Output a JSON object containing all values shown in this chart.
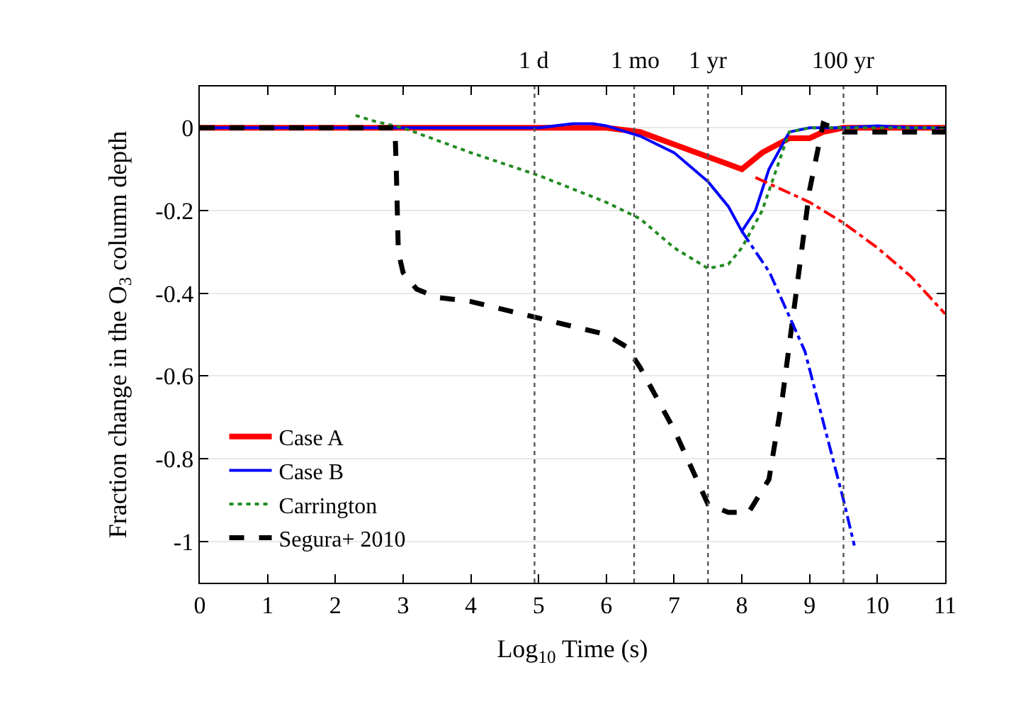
{
  "chart_data": {
    "type": "line",
    "xlabel": "Log$_{10}$ Time (s)",
    "ylabel": "Fraction change in the O$_{3}$ column depth",
    "xlim": [
      0,
      11
    ],
    "xticks": [
      0,
      1,
      2,
      3,
      4,
      5,
      6,
      7,
      8,
      9,
      10,
      11
    ],
    "ylim": [
      -1.1,
      0.1
    ],
    "yticks": [
      0,
      -0.2,
      -0.4,
      -0.6,
      -0.8,
      -1
    ],
    "grid": "y",
    "legend": "bottom left",
    "ref_lines": [
      {
        "axis": "x",
        "value": 4.94,
        "label": "1 d",
        "line_style": "dotted"
      },
      {
        "axis": "x",
        "value": 6.41,
        "label": "1 mo",
        "line_style": "dotted"
      },
      {
        "axis": "x",
        "value": 7.5,
        "label": "1 yr",
        "line_style": "dotted"
      },
      {
        "axis": "x",
        "value": 9.5,
        "label": "100 yr",
        "line_style": "dotted"
      }
    ],
    "series": [
      {
        "name": "Case A",
        "color": "#ff0000",
        "line_style": "solid",
        "x": [
          0,
          5,
          6,
          6.5,
          7,
          7.5,
          8,
          8.3,
          8.7,
          9,
          9.2,
          9.5,
          10,
          11
        ],
        "values": [
          0,
          0,
          0,
          -0.01,
          -0.04,
          -0.07,
          -0.1,
          -0.06,
          -0.025,
          -0.025,
          -0.01,
          0,
          0,
          0
        ]
      },
      {
        "name": "Case B",
        "color": "#0000ff",
        "line_style": "solid",
        "x": [
          0,
          5,
          5.5,
          5.8,
          6,
          6.5,
          7,
          7.5,
          7.8,
          8,
          8.2,
          8.4,
          8.7,
          9,
          9.5,
          10,
          10.5,
          11
        ],
        "values": [
          0,
          0,
          0.01,
          0.01,
          0.005,
          -0.02,
          -0.06,
          -0.13,
          -0.19,
          -0.25,
          -0.2,
          -0.1,
          -0.01,
          0,
          0,
          0.005,
          0,
          0
        ]
      },
      {
        "name": "Carrington",
        "color": "#228b22",
        "line_style": "dotted",
        "x": [
          2.3,
          2.6,
          3,
          4,
          5,
          6,
          6.5,
          7,
          7.5,
          7.8,
          8,
          8.3,
          8.7,
          9,
          10,
          11
        ],
        "values": [
          0.03,
          0.015,
          0,
          -0.06,
          -0.115,
          -0.18,
          -0.22,
          -0.29,
          -0.34,
          -0.33,
          -0.29,
          -0.2,
          -0.01,
          0,
          0,
          0
        ]
      },
      {
        "name": "Segura+ 2010",
        "color": "#000000",
        "line_style": "dashed",
        "x": [
          0,
          2.88,
          2.9,
          2.93,
          3,
          3.2,
          3.5,
          4,
          5,
          6,
          6.3,
          6.5,
          7,
          7.5,
          7.8,
          8.1,
          8.4,
          8.6,
          8.8,
          9,
          9.2,
          9.5,
          10,
          11
        ],
        "values": [
          0,
          0,
          -0.1,
          -0.3,
          -0.35,
          -0.39,
          -0.41,
          -0.42,
          -0.46,
          -0.5,
          -0.53,
          -0.58,
          -0.73,
          -0.91,
          -0.93,
          -0.93,
          -0.85,
          -0.65,
          -0.4,
          -0.15,
          0.01,
          -0.01,
          -0.01,
          -0.01
        ]
      },
      {
        "color": "#ff0000",
        "line_style": "dashdot",
        "x": [
          8.2,
          9,
          9.5,
          10,
          10.5,
          11
        ],
        "values": [
          -0.12,
          -0.18,
          -0.23,
          -0.29,
          -0.36,
          -0.45
        ]
      },
      {
        "color": "#0000ff",
        "line_style": "dashdot",
        "x": [
          8,
          8.41,
          8.93,
          9.5,
          9.66
        ],
        "values": [
          -0.25,
          -0.35,
          -0.54,
          -0.9,
          -1.01
        ]
      }
    ]
  }
}
